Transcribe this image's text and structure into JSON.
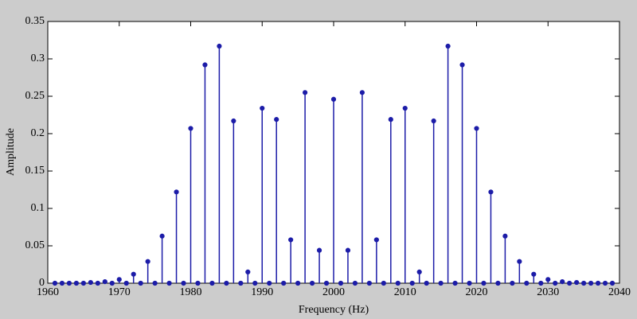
{
  "chart_data": {
    "type": "stem",
    "x_label": "Frequency (Hz)",
    "y_label": "Amplitude",
    "x": [
      1961,
      1962,
      1963,
      1964,
      1965,
      1966,
      1967,
      1968,
      1969,
      1970,
      1971,
      1972,
      1973,
      1974,
      1975,
      1976,
      1977,
      1978,
      1979,
      1980,
      1981,
      1982,
      1983,
      1984,
      1985,
      1986,
      1987,
      1988,
      1989,
      1990,
      1991,
      1992,
      1993,
      1994,
      1995,
      1996,
      1997,
      1998,
      1999,
      2000,
      2001,
      2002,
      2003,
      2004,
      2005,
      2006,
      2007,
      2008,
      2009,
      2010,
      2011,
      2012,
      2013,
      2014,
      2015,
      2016,
      2017,
      2018,
      2019,
      2020,
      2021,
      2022,
      2023,
      2024,
      2025,
      2026,
      2027,
      2028,
      2029,
      2030,
      2031,
      2032,
      2033,
      2034,
      2035,
      2036,
      2037,
      2038,
      2039
    ],
    "values": [
      0,
      0,
      0,
      0,
      0,
      0.001,
      0,
      0.002,
      0,
      0.005,
      0,
      0.012,
      0,
      0.029,
      0,
      0.063,
      0,
      0.122,
      0,
      0.207,
      0,
      0.292,
      0,
      0.317,
      0,
      0.217,
      0,
      0.015,
      0,
      0.234,
      0,
      0.219,
      0,
      0.058,
      0,
      0.255,
      0,
      0.044,
      0,
      0.246,
      0,
      0.044,
      0,
      0.255,
      0,
      0.058,
      0,
      0.219,
      0,
      0.234,
      0,
      0.015,
      0,
      0.217,
      0,
      0.317,
      0,
      0.292,
      0,
      0.207,
      0,
      0.122,
      0,
      0.063,
      0,
      0.029,
      0,
      0.012,
      0,
      0.005,
      0,
      0.002,
      0,
      0.001,
      0,
      0,
      0,
      0,
      0
    ],
    "color": "#1c1ca8",
    "xlim": [
      1960,
      2040
    ],
    "xticks": [
      1960,
      1970,
      1980,
      1990,
      2000,
      2010,
      2020,
      2030,
      2040
    ],
    "ylim": [
      0,
      0.35
    ],
    "yticks": [
      0,
      0.05,
      0.1,
      0.15,
      0.2,
      0.25,
      0.3,
      0.35
    ]
  }
}
